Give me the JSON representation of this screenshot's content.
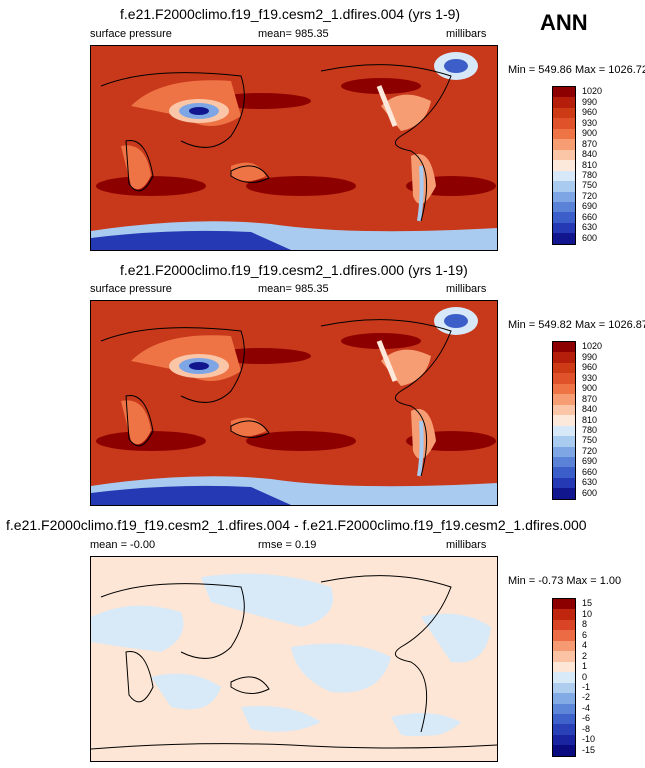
{
  "season": "ANN",
  "panels": [
    {
      "title": "f.e21.F2000climo.f19_f19.cesm2_1.dfires.004 (yrs 1-9)",
      "left_label": "surface pressure",
      "center_label": "mean= 985.35",
      "right_label": "millibars",
      "minmax": "Min = 549.86 Max = 1026.72",
      "levels": [
        "1020",
        "990",
        "960",
        "930",
        "900",
        "870",
        "840",
        "810",
        "780",
        "750",
        "720",
        "690",
        "660",
        "630",
        "600"
      ],
      "colors": [
        "#8c0000",
        "#b41e0a",
        "#cc3b16",
        "#e0532a",
        "#ee7446",
        "#f69d74",
        "#fbc6a8",
        "#fde9dc",
        "#d7e8f8",
        "#a9cbef",
        "#7ea6e4",
        "#5a82d7",
        "#3c5ec9",
        "#2539b4",
        "#11168f"
      ]
    },
    {
      "title": "f.e21.F2000climo.f19_f19.cesm2_1.dfires.000 (yrs 1-19)",
      "left_label": "surface pressure",
      "center_label": "mean= 985.35",
      "right_label": "millibars",
      "minmax": "Min = 549.82 Max = 1026.87",
      "levels": [
        "1020",
        "990",
        "960",
        "930",
        "900",
        "870",
        "840",
        "810",
        "780",
        "750",
        "720",
        "690",
        "660",
        "630",
        "600"
      ],
      "colors": [
        "#8c0000",
        "#b41e0a",
        "#cc3b16",
        "#e0532a",
        "#ee7446",
        "#f69d74",
        "#fbc6a8",
        "#fde9dc",
        "#d7e8f8",
        "#a9cbef",
        "#7ea6e4",
        "#5a82d7",
        "#3c5ec9",
        "#2539b4",
        "#11168f"
      ]
    },
    {
      "title": "f.e21.F2000climo.f19_f19.cesm2_1.dfires.004 - f.e21.F2000climo.f19_f19.cesm2_1.dfires.000",
      "left_label": "mean =  -0.00",
      "center_label": "rmse =   0.19",
      "right_label": "millibars",
      "minmax": "Min =  -0.73 Max =   1.00",
      "levels": [
        "15",
        "10",
        "8",
        "6",
        "4",
        "2",
        "1",
        "0",
        "-1",
        "-2",
        "-4",
        "-6",
        "-8",
        "-10",
        "-15"
      ],
      "colors": [
        "#8c0000",
        "#c0260e",
        "#d94426",
        "#ec6b44",
        "#f59a72",
        "#fbc3a3",
        "#fde6d5",
        "#d8e9f8",
        "#aecdef",
        "#82aae4",
        "#5d86d8",
        "#3f62ca",
        "#2a40b6",
        "#1a24a0",
        "#0b0b80"
      ]
    }
  ]
}
